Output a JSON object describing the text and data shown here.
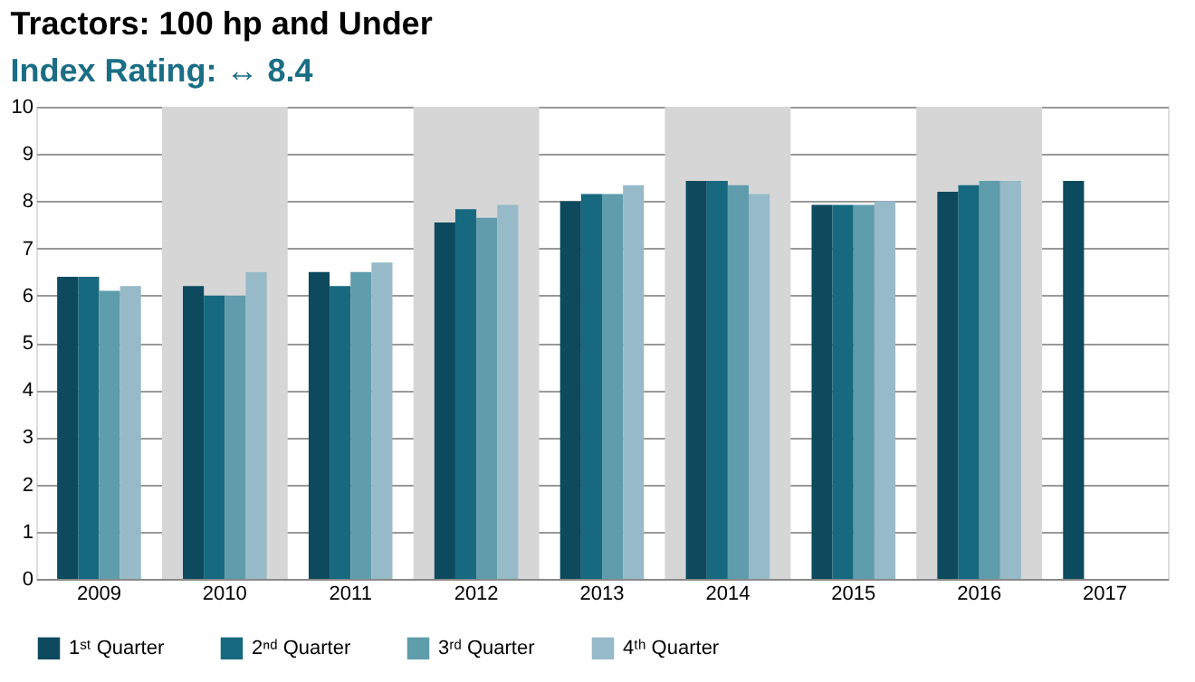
{
  "chart_data": {
    "type": "bar",
    "title": "Tractors: 100 hp and Under",
    "subtitle": "Index Rating: ↔ 8.4",
    "categories": [
      "2009",
      "2010",
      "2011",
      "2012",
      "2013",
      "2014",
      "2015",
      "2016",
      "2017"
    ],
    "series": [
      {
        "name": "1ˢᵗ Quarter",
        "color": "#0d4a5e",
        "values": [
          6.4,
          6.2,
          6.5,
          7.55,
          8.0,
          8.43,
          7.92,
          8.2,
          8.43
        ]
      },
      {
        "name": "2ⁿᵈ Quarter",
        "color": "#16697f",
        "values": [
          6.4,
          6.0,
          6.2,
          7.83,
          8.15,
          8.43,
          7.92,
          8.34,
          null
        ]
      },
      {
        "name": "3ʳᵈ Quarter",
        "color": "#5f9cac",
        "values": [
          6.1,
          6.0,
          6.5,
          7.65,
          8.15,
          8.34,
          7.92,
          8.43,
          null
        ]
      },
      {
        "name": "4ᵗʰ Quarter",
        "color": "#96bac7",
        "values": [
          6.2,
          6.5,
          6.7,
          7.92,
          8.34,
          8.15,
          8.0,
          8.43,
          null
        ]
      }
    ],
    "ylim": [
      0,
      10
    ],
    "yticks": [
      0,
      1,
      2,
      3,
      4,
      5,
      6,
      7,
      8,
      9,
      10
    ],
    "grid": "y",
    "legend": "bottom",
    "bands": [
      {
        "axis": "x",
        "from": "2010",
        "to": "2010",
        "color": "#d6d6d6"
      },
      {
        "axis": "x",
        "from": "2012",
        "to": "2012",
        "color": "#d6d6d6"
      },
      {
        "axis": "x",
        "from": "2014",
        "to": "2014",
        "color": "#d6d6d6"
      },
      {
        "axis": "x",
        "from": "2016",
        "to": "2016",
        "color": "#d6d6d6"
      }
    ]
  }
}
